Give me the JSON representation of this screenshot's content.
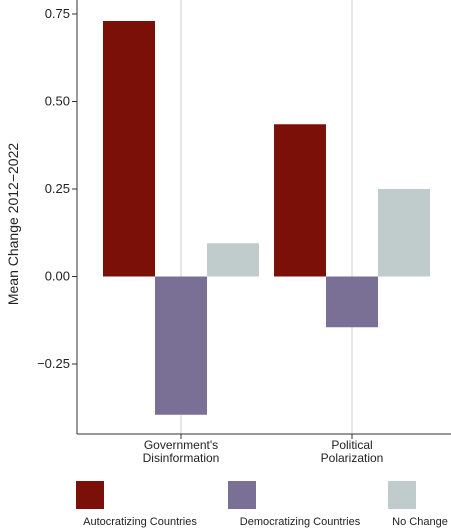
{
  "chart_data": {
    "type": "bar",
    "ylabel": "Mean Change 2012−2022",
    "ylim": [
      -0.45,
      0.75
    ],
    "y_ticks": [
      -0.25,
      0.0,
      0.25,
      0.5,
      0.75
    ],
    "y_tick_labels": [
      "−0.25",
      "0.00",
      "0.25",
      "0.50",
      "0.75"
    ],
    "grid": "vertical",
    "legend_position": "bottom",
    "categories": [
      {
        "lines": [
          "Government's",
          "Disinformation"
        ]
      },
      {
        "lines": [
          "Political",
          "Polarization"
        ]
      }
    ],
    "series": [
      {
        "name": "Autocratizing Countries",
        "color": "#7a1008",
        "values": [
          0.73,
          0.435
        ]
      },
      {
        "name": "Democratizing Countries",
        "color": "#7a7096",
        "values": [
          -0.395,
          -0.145
        ]
      },
      {
        "name": "No Change",
        "color": "#c0cccc",
        "values": [
          0.095,
          0.25
        ]
      }
    ]
  }
}
